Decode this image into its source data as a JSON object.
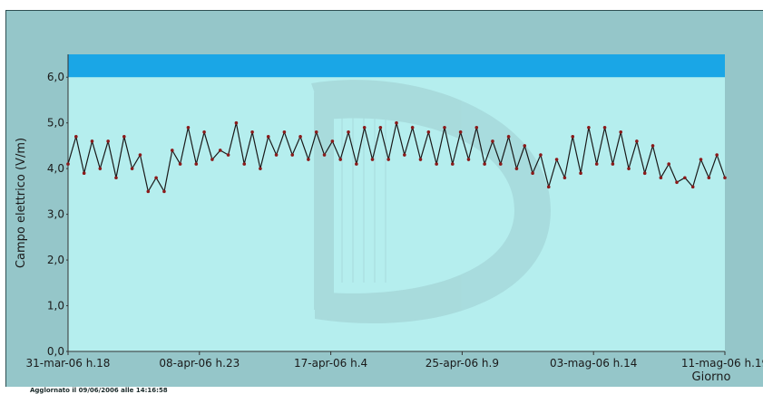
{
  "chart_data": {
    "type": "line",
    "ylabel": "Campo elettrico (V/m)",
    "xlabel": "Giorno",
    "ylim": [
      0,
      6.5
    ],
    "yticks": [
      "0,0",
      "1,0",
      "2,0",
      "3,0",
      "4,0",
      "5,0",
      "6,0"
    ],
    "limit_band": [
      6.0,
      6.5
    ],
    "xticks": [
      "31-mar-06 h.18",
      "08-apr-06 h.23",
      "17-apr-06 h.4",
      "25-apr-06 h.9",
      "03-mag-06 h.14",
      "11-mag-06 h.19"
    ],
    "series": [
      {
        "x_days": [
          0,
          0.5,
          1,
          1.5,
          2,
          2.5,
          3,
          3.5,
          4,
          4.5,
          5,
          5.5,
          6,
          6.5,
          7,
          7.5,
          8,
          8.5,
          9,
          9.5,
          10,
          10.5,
          11,
          11.5,
          12,
          12.5,
          13,
          13.5,
          14,
          14.5,
          15,
          15.5,
          16,
          16.5,
          17,
          17.5,
          18,
          18.5,
          19,
          19.5,
          20,
          20.5,
          21,
          21.5,
          22,
          22.5,
          23,
          23.5,
          24,
          24.5,
          25,
          25.5,
          26,
          26.5,
          27,
          27.5,
          28,
          28.5,
          29,
          29.5,
          30,
          30.5,
          31,
          31.5,
          32,
          32.5,
          33,
          33.5,
          34,
          34.5,
          35,
          35.5,
          36,
          36.5,
          37,
          37.5,
          38,
          38.5,
          39,
          39.5,
          40,
          40.5,
          41
        ],
        "values": [
          4.1,
          4.7,
          3.9,
          4.6,
          4.0,
          4.6,
          3.8,
          4.7,
          4.0,
          4.3,
          3.5,
          3.8,
          3.5,
          4.4,
          4.1,
          4.9,
          4.1,
          4.8,
          4.2,
          4.4,
          4.3,
          5.0,
          4.1,
          4.8,
          4.0,
          4.7,
          4.3,
          4.8,
          4.3,
          4.7,
          4.2,
          4.8,
          4.3,
          4.6,
          4.2,
          4.8,
          4.1,
          4.9,
          4.2,
          4.9,
          4.2,
          5.0,
          4.3,
          4.9,
          4.2,
          4.8,
          4.1,
          4.9,
          4.1,
          4.8,
          4.2,
          4.9,
          4.1,
          4.6,
          4.1,
          4.7,
          4.0,
          4.5,
          3.9,
          4.3,
          3.6,
          4.2,
          3.8,
          4.7,
          3.9,
          4.9,
          4.1,
          4.9,
          4.1,
          4.8,
          4.0,
          4.6,
          3.9,
          4.5,
          3.8,
          4.1,
          3.7,
          3.8,
          3.6,
          4.2,
          3.8,
          4.3,
          3.8
        ]
      }
    ],
    "annotation": "Agglornato il 09/06/2006 alle 14:16:58"
  }
}
